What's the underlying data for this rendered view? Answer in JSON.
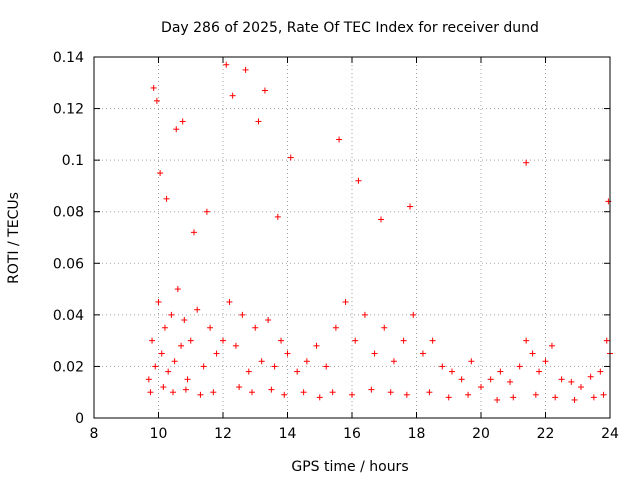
{
  "chart_data": {
    "type": "scatter",
    "title": "Day 286 of 2025, Rate Of TEC Index for receiver dund",
    "xlabel": "GPS time / hours",
    "ylabel": "ROTI / TECUs",
    "xlim": [
      8,
      24
    ],
    "ylim": [
      0,
      0.14
    ],
    "xticks": [
      "8",
      "10",
      "12",
      "14",
      "16",
      "18",
      "20",
      "22",
      "24"
    ],
    "yticks": [
      "0",
      "0.02",
      "0.04",
      "0.06",
      "0.08",
      "0.1",
      "0.12",
      "0.14"
    ],
    "grid": true,
    "marker": "plus",
    "color": "#ff0000",
    "series": [
      {
        "x": [
          9.7,
          9.8,
          9.9,
          10.0,
          10.1,
          10.2,
          10.3,
          10.4,
          10.5,
          10.6,
          10.7,
          10.8,
          10.9,
          11.0,
          11.2,
          11.4,
          11.6,
          11.8,
          12.0,
          12.2,
          12.4,
          12.6,
          12.8,
          13.0,
          13.2,
          13.4,
          13.6,
          13.8,
          14.0,
          14.3,
          14.6,
          14.9,
          15.2,
          15.5,
          15.8,
          16.1,
          16.4,
          16.7,
          17.0,
          17.3,
          17.6,
          17.9,
          18.2,
          18.5,
          18.8,
          19.1,
          19.4,
          19.7,
          20.0,
          20.3,
          20.6,
          20.9,
          21.2,
          21.4,
          21.6,
          21.8,
          22.0,
          22.2,
          22.5,
          22.8,
          23.1,
          23.4,
          23.7,
          23.9,
          24.0,
          9.85,
          9.95,
          10.05,
          10.25,
          10.55,
          10.75,
          11.1,
          11.5,
          12.1,
          12.3,
          12.7,
          13.1,
          13.3,
          13.7,
          14.1,
          15.6,
          16.2,
          16.9,
          17.8,
          21.4,
          23.95,
          9.75,
          10.15,
          10.45,
          10.85,
          11.3,
          11.7,
          12.5,
          12.9,
          13.5,
          13.9,
          14.5,
          15.0,
          15.4,
          16.0,
          16.6,
          17.2,
          17.7,
          18.4,
          19.0,
          19.6,
          20.5,
          21.0,
          21.7,
          22.3,
          22.9,
          23.5,
          23.8
        ],
        "y": [
          0.015,
          0.03,
          0.02,
          0.045,
          0.025,
          0.035,
          0.018,
          0.04,
          0.022,
          0.05,
          0.028,
          0.038,
          0.015,
          0.03,
          0.042,
          0.02,
          0.035,
          0.025,
          0.03,
          0.045,
          0.028,
          0.04,
          0.018,
          0.035,
          0.022,
          0.038,
          0.02,
          0.03,
          0.025,
          0.018,
          0.022,
          0.028,
          0.02,
          0.035,
          0.045,
          0.03,
          0.04,
          0.025,
          0.035,
          0.022,
          0.03,
          0.04,
          0.025,
          0.03,
          0.02,
          0.018,
          0.015,
          0.022,
          0.012,
          0.015,
          0.018,
          0.014,
          0.02,
          0.03,
          0.025,
          0.018,
          0.022,
          0.028,
          0.015,
          0.014,
          0.012,
          0.016,
          0.018,
          0.03,
          0.025,
          0.128,
          0.123,
          0.095,
          0.085,
          0.112,
          0.115,
          0.072,
          0.08,
          0.137,
          0.125,
          0.135,
          0.115,
          0.127,
          0.078,
          0.101,
          0.108,
          0.092,
          0.077,
          0.082,
          0.099,
          0.084,
          0.01,
          0.012,
          0.01,
          0.011,
          0.009,
          0.01,
          0.012,
          0.01,
          0.011,
          0.009,
          0.01,
          0.008,
          0.01,
          0.009,
          0.011,
          0.01,
          0.009,
          0.01,
          0.008,
          0.009,
          0.007,
          0.008,
          0.009,
          0.008,
          0.007,
          0.008,
          0.009
        ]
      }
    ]
  }
}
